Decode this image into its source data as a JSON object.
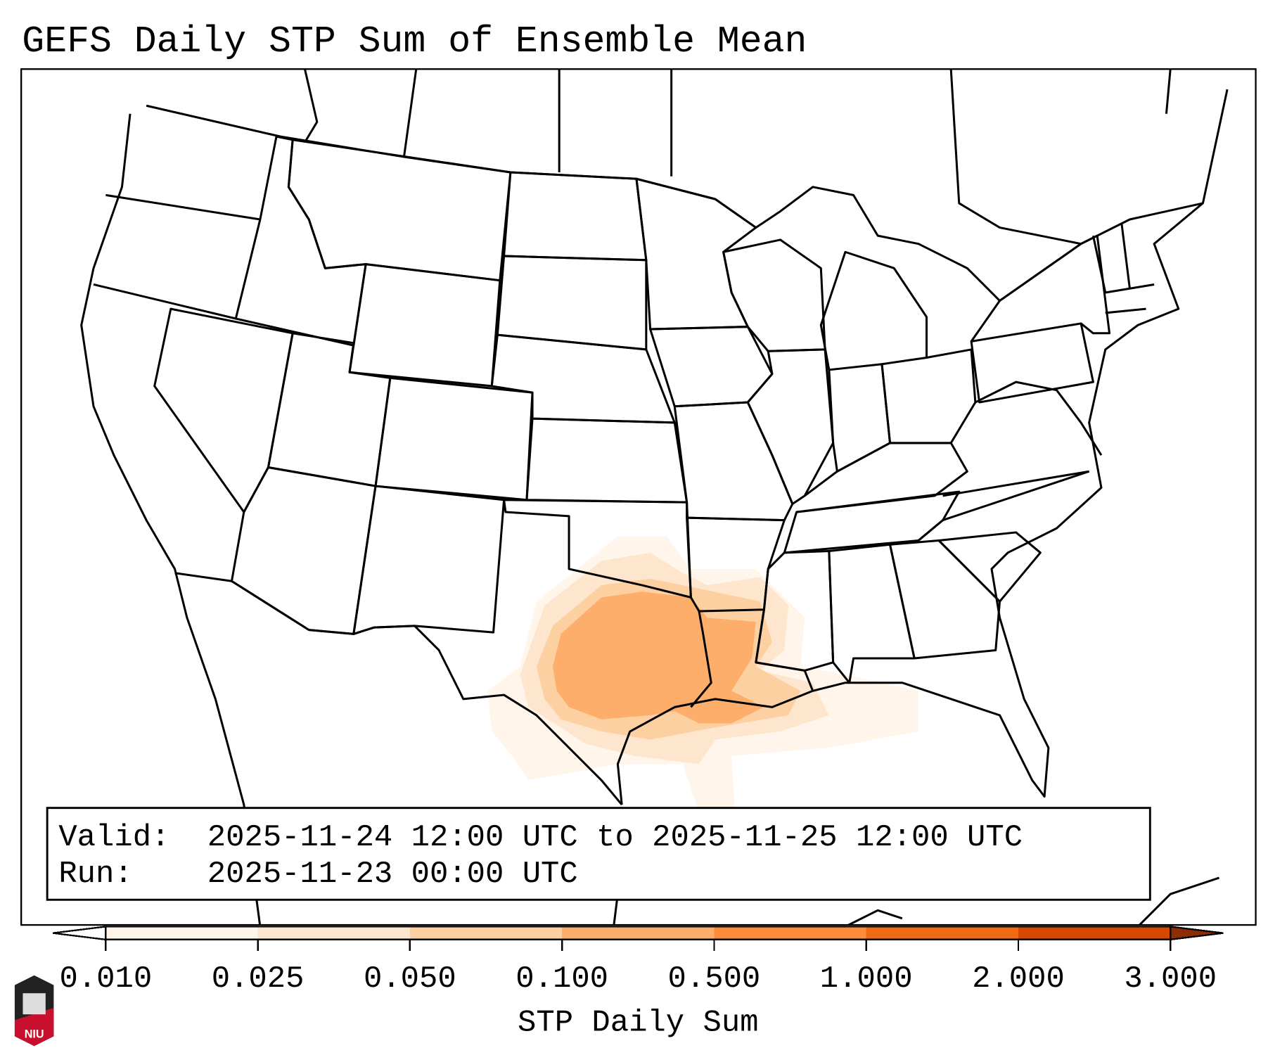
{
  "title": "GEFS Daily STP Sum of Ensemble Mean",
  "info_box": {
    "valid_label": "Valid:",
    "valid_value": "2025-11-24 12:00 UTC to 2025-11-25 12:00 UTC",
    "run_label": "Run:",
    "run_value": "2025-11-23 00:00 UTC"
  },
  "colorbar": {
    "label": "STP Daily Sum",
    "ticks": [
      "0.010",
      "0.025",
      "0.050",
      "0.100",
      "0.500",
      "1.000",
      "2.000",
      "3.000"
    ],
    "colors": [
      "#fff5eb",
      "#fee6ce",
      "#fdd0a2",
      "#fdae6b",
      "#fd8d3c",
      "#f16913",
      "#d94801"
    ],
    "under_color": "#ffffff",
    "over_color": "#8c2d04"
  },
  "logo": {
    "text": "NIU"
  }
}
